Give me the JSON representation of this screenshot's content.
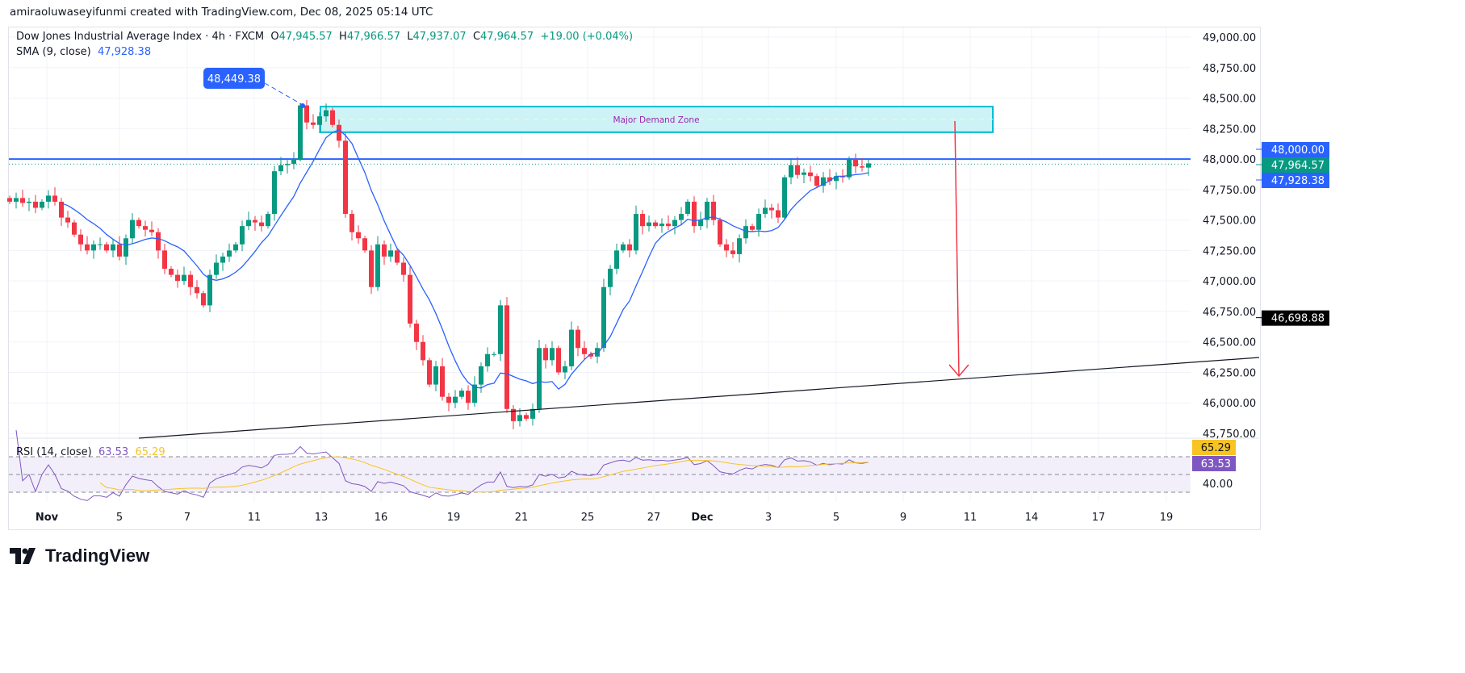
{
  "credit": "amiraoluwaseyifunmi created with TradingView.com, Dec 08, 2025 05:14 UTC",
  "legend": {
    "symbol": "Dow Jones Industrial Average Index · 4h · FXCM",
    "o_label": "O",
    "o": "47,945.57",
    "h_label": "H",
    "h": "47,966.57",
    "l_label": "L",
    "l": "47,937.07",
    "c_label": "C",
    "c": "47,964.57",
    "change": "+19.00 (+0.04%)",
    "sma_label": "SMA (9, close)",
    "sma_value": "47,928.38",
    "rsi_label": "RSI (14, close)",
    "rsi_value": "63.53",
    "rsi_ma_value": "65.29"
  },
  "branding": "TradingView",
  "colors": {
    "up": "#089981",
    "down": "#f23645",
    "sma": "#2962ff",
    "rsi": "#7e57c2",
    "rsi_ma": "#f7c325",
    "zone": "#00bcd4",
    "arrow": "#f23645",
    "level": "#2962ff"
  },
  "chart_data": {
    "type": "candlestick",
    "interval": "4h",
    "ylim": [
      45750,
      49000
    ],
    "y_ticks": [
      "49,000.00",
      "48,750.00",
      "48,500.00",
      "48,250.00",
      "48,000.00",
      "47,750.00",
      "47,500.00",
      "47,250.00",
      "47,000.00",
      "46,750.00",
      "46,500.00",
      "46,250.00",
      "46,000.00",
      "45,750.00"
    ],
    "x_ticks": [
      "Nov",
      "5",
      "7",
      "11",
      "13",
      "16",
      "19",
      "21",
      "25",
      "27",
      "Dec",
      "3",
      "5",
      "9",
      "11",
      "14",
      "17",
      "19"
    ],
    "closes": [
      47650,
      47680,
      47640,
      47650,
      47600,
      47650,
      47700,
      47650,
      47520,
      47480,
      47380,
      47300,
      47250,
      47300,
      47300,
      47250,
      47300,
      47200,
      47350,
      47500,
      47450,
      47420,
      47400,
      47250,
      47100,
      47050,
      47000,
      47050,
      46950,
      46900,
      46800,
      47050,
      47150,
      47200,
      47250,
      47300,
      47450,
      47500,
      47480,
      47450,
      47550,
      47900,
      47950,
      47960,
      48000,
      48440,
      48300,
      48280,
      48350,
      48400,
      48280,
      48150,
      47550,
      47400,
      47350,
      47250,
      46950,
      47300,
      47200,
      47250,
      47150,
      47050,
      46650,
      46500,
      46350,
      46150,
      46300,
      46050,
      46000,
      46050,
      46100,
      46000,
      46150,
      46300,
      46400,
      46400,
      46800,
      45950,
      45850,
      45900,
      45870,
      45950,
      46450,
      46350,
      46450,
      46250,
      46300,
      46600,
      46450,
      46400,
      46380,
      46450,
      46950,
      47100,
      47250,
      47300,
      47250,
      47550,
      47450,
      47480,
      47450,
      47470,
      47450,
      47500,
      47550,
      47650,
      47450,
      47500,
      47650,
      47500,
      47300,
      47250,
      47220,
      47350,
      47450,
      47420,
      47550,
      47600,
      47580,
      47520,
      47850,
      47950,
      47870,
      47890,
      47860,
      47780,
      47850,
      47820,
      47860,
      47850,
      48000,
      47940,
      47930,
      47964.57
    ],
    "sma_period": 9,
    "rsi_period": 14,
    "rsi_ticks": [
      "40.00"
    ],
    "rsi_bands": [
      70,
      50,
      30
    ],
    "price_labels": [
      {
        "text": "48,000.00",
        "price": 48000,
        "color": "#2962ff"
      },
      {
        "text": "47,964.57",
        "price": 47964.57,
        "color": "#089981"
      },
      {
        "text": "47,928.38",
        "price": 47928.38,
        "color": "#2962ff"
      },
      {
        "text": "46,698.88",
        "price": 46698.88,
        "color": "#000000"
      }
    ],
    "annotations": {
      "high_callout": "48,449.38",
      "zone_label": "Major Demand Zone",
      "zone_range": [
        48220,
        48430
      ],
      "level": 48000
    }
  }
}
